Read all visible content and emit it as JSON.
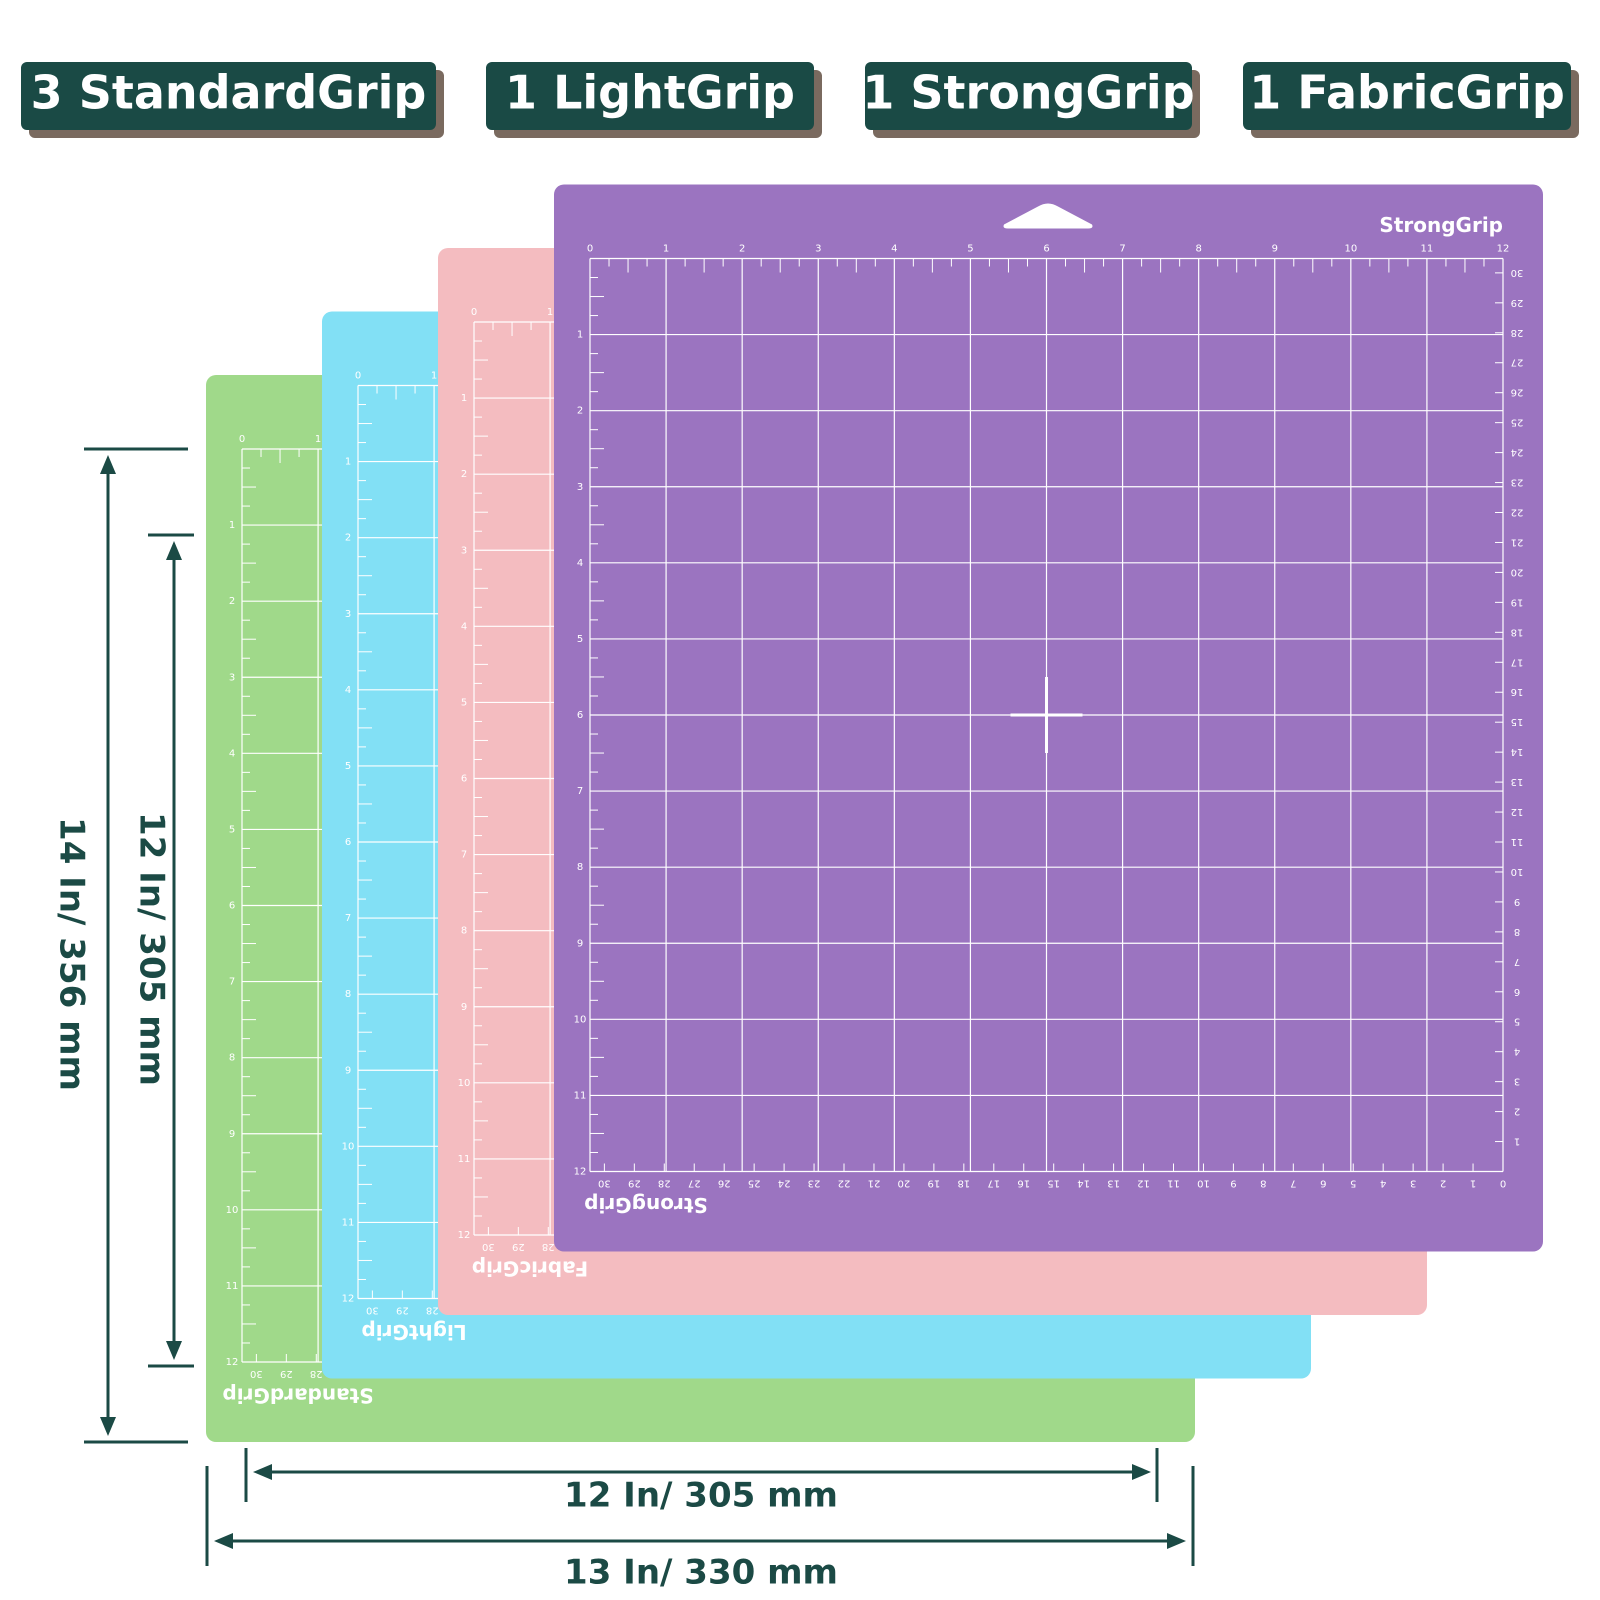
{
  "badges": [
    "3 StandardGrip",
    "1 LightGrip",
    "1 StrongGrip",
    "1 FabricGrip"
  ],
  "mats": [
    {
      "name": "StandardGrip",
      "color": "#a0d98a"
    },
    {
      "name": "LightGrip",
      "color": "#82e0f5"
    },
    {
      "name": "FabricGrip",
      "color": "#f4bcc0"
    },
    {
      "name": "StrongGrip",
      "color": "#9b74c0"
    }
  ],
  "ruler": {
    "inches": [
      0,
      1,
      2,
      3,
      4,
      5,
      6,
      7,
      8,
      9,
      10,
      11,
      12
    ],
    "cm": [
      0,
      1,
      2,
      3,
      4,
      5,
      6,
      7,
      8,
      9,
      10,
      11,
      12,
      13,
      14,
      15,
      16,
      17,
      18,
      19,
      20,
      21,
      22,
      23,
      24,
      25,
      26,
      27,
      28,
      29,
      30
    ]
  },
  "dimensions": {
    "height_outer": "14 In/ 356 mm",
    "height_inner": "12 In/ 305 mm",
    "width_inner": "12 In/ 305 mm",
    "width_outer": "13 In/ 330 mm"
  }
}
